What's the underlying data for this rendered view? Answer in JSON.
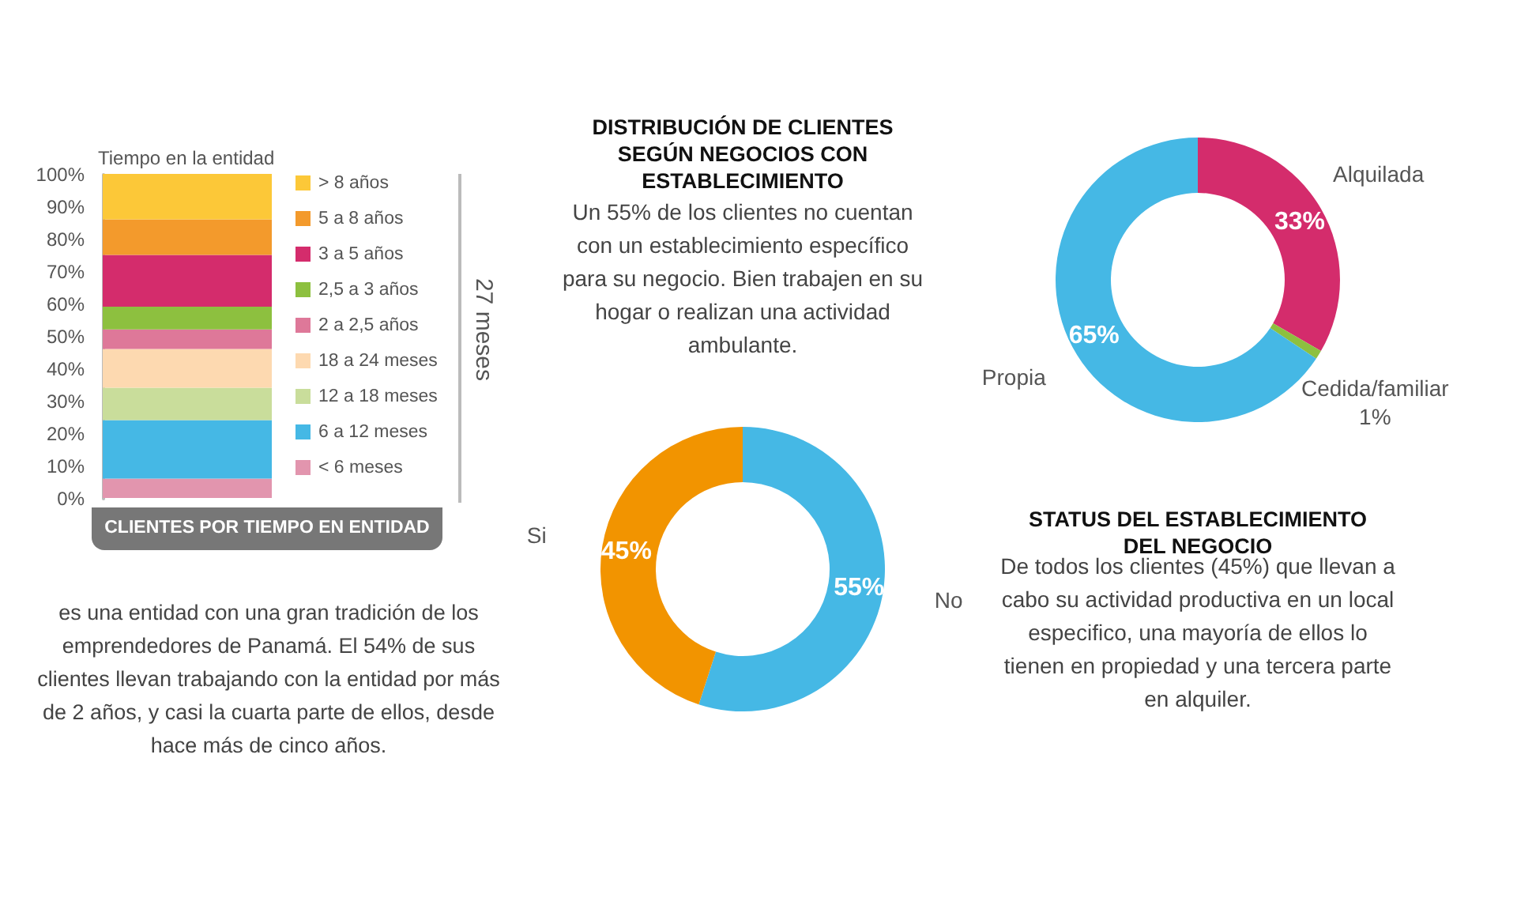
{
  "chart_data": [
    {
      "type": "bar",
      "stacked": true,
      "title": "CLIENTES POR TIEMPO EN ENTIDAD",
      "subtitle": "Tiempo en la entidad",
      "categories": [
        null
      ],
      "legend": "right",
      "series": [
        {
          "name": "< 6 meses",
          "color": "#e295ae",
          "values": [
            6
          ]
        },
        {
          "name": "6 a 12 meses",
          "color": "#45b8e5",
          "values": [
            18
          ]
        },
        {
          "name": "12 a 18 meses",
          "color": "#c9dd9b",
          "values": [
            10
          ]
        },
        {
          "name": "18 a 24 meses",
          "color": "#fdd9b0",
          "values": [
            12
          ]
        },
        {
          "name": "2 a 2,5 años",
          "color": "#de7899",
          "values": [
            6
          ]
        },
        {
          "name": "2,5 a 3 años",
          "color": "#8dc03f",
          "values": [
            7
          ]
        },
        {
          "name": "3 a 5 años",
          "color": "#d42c6c",
          "values": [
            16
          ]
        },
        {
          "name": "5 a 8 años",
          "color": "#f39a2c",
          "values": [
            11
          ]
        },
        {
          "name": "> 8 años",
          "color": "#fcc838",
          "values": [
            14
          ]
        }
      ],
      "ylim": [
        0,
        100
      ],
      "yticks": [
        {
          "value": 0,
          "label": "0%"
        },
        {
          "value": 10,
          "label": "10%"
        },
        {
          "value": 20,
          "label": "20%"
        },
        {
          "value": 30,
          "label": "30%"
        },
        {
          "value": 40,
          "label": "40%"
        },
        {
          "value": 50,
          "label": "50%"
        },
        {
          "value": 60,
          "label": "60%"
        },
        {
          "value": 70,
          "label": "70%"
        },
        {
          "value": 80,
          "label": "80%"
        },
        {
          "value": 90,
          "label": "90%"
        },
        {
          "value": 100,
          "label": "100%"
        }
      ],
      "annotations": [
        "27 meses",
        "es una entidad con una gran tradición de los emprendedores de Panamá. El 54% de sus clientes llevan trabajando con la entidad por más de 2 años, y casi la cuarta parte de ellos, desde hace más de cinco años."
      ]
    },
    {
      "type": "donut",
      "title": "DISTRIBUCIÓN DE CLIENTES SEGÚN NEGOCIOS CON ESTABLECIMIENTO",
      "subtitle": "Un 55% de los clientes no cuentan con un establecimiento específico para su negocio. Bien trabajen en su hogar o realizan una actividad ambulante.",
      "categories": [
        "No",
        "Si"
      ],
      "values": [
        55,
        45
      ],
      "colors": [
        "#45b8e5",
        "#f29400"
      ],
      "value_labels": [
        "55%",
        "45%"
      ]
    },
    {
      "type": "donut",
      "title": "STATUS DEL ESTABLECIMIENTO DEL NEGOCIO",
      "subtitle": "De todos los clientes (45%) que llevan a cabo su actividad productiva en un local especifico, una mayoría de ellos lo tienen en propiedad y una tercera parte en alquiler.",
      "categories": [
        "Alquilada",
        "Cedida/familiar",
        "Propia"
      ],
      "values": [
        33,
        1,
        65
      ],
      "colors": [
        "#d42c6c",
        "#8dc03f",
        "#45b8e5"
      ],
      "value_labels": [
        "33%",
        "1%",
        "65%"
      ]
    }
  ]
}
